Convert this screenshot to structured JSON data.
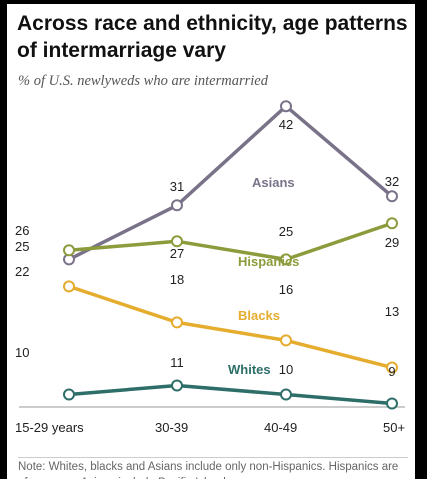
{
  "title": "Across race and ethnicity, age patterns of intermarriage vary",
  "subtitle": "% of U.S. newlyweds who are intermarried",
  "note": "Note: Whites, blacks and Asians include only non-Hispanics. Hispanics are of any race. Asians include Pacific Islanders.",
  "chart_data": {
    "type": "line",
    "title": "Across race and ethnicity, age patterns of intermarriage vary",
    "subtitle": "% of U.S. newlyweds who are intermarried",
    "categories": [
      "15-29 years",
      "30-39",
      "40-49",
      "50+"
    ],
    "ylim": [
      0,
      50
    ],
    "grid": false,
    "legend": "inline labels",
    "series": [
      {
        "name": "Asians",
        "values": [
          25,
          31,
          42,
          32
        ],
        "color": "#7a7288"
      },
      {
        "name": "Hispanics",
        "values": [
          26,
          27,
          25,
          29
        ],
        "color": "#8c9c3c"
      },
      {
        "name": "Blacks",
        "values": [
          22,
          18,
          16,
          13
        ],
        "color": "#e5ac2e"
      },
      {
        "name": "Whites",
        "values": [
          10,
          11,
          10,
          9
        ],
        "color": "#2e6e68"
      }
    ]
  }
}
